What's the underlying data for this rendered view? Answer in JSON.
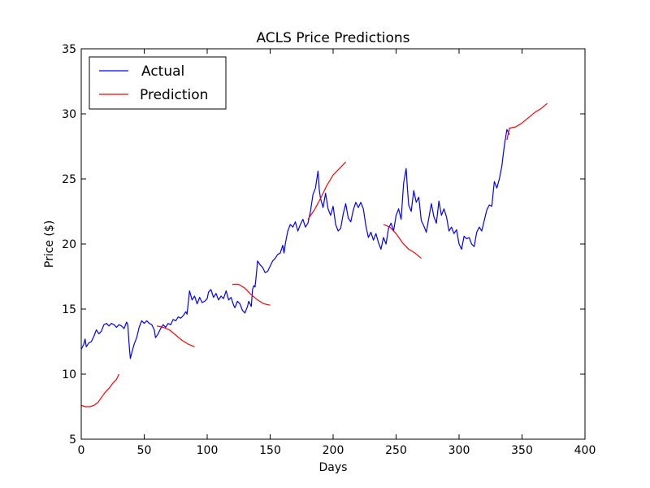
{
  "chart_data": {
    "type": "line",
    "title": "ACLS Price Predictions",
    "xlabel": "Days",
    "ylabel": "Price ($)",
    "xlim": [
      0,
      400
    ],
    "ylim": [
      5,
      35
    ],
    "xticks": [
      0,
      50,
      100,
      150,
      200,
      250,
      300,
      350,
      400
    ],
    "yticks": [
      5,
      10,
      15,
      20,
      25,
      30,
      35
    ],
    "grid": false,
    "legend": "top-left",
    "series": [
      {
        "name": "Actual",
        "color": "#0000ff",
        "points": [
          [
            0,
            11.9
          ],
          [
            2,
            12.3
          ],
          [
            3,
            12.7
          ],
          [
            4,
            12.1
          ],
          [
            6,
            12.4
          ],
          [
            8,
            12.5
          ],
          [
            10,
            12.9
          ],
          [
            12,
            13.4
          ],
          [
            14,
            13.1
          ],
          [
            16,
            13.3
          ],
          [
            18,
            13.8
          ],
          [
            20,
            13.9
          ],
          [
            22,
            13.7
          ],
          [
            24,
            13.9
          ],
          [
            26,
            13.8
          ],
          [
            28,
            13.6
          ],
          [
            30,
            13.8
          ],
          [
            32,
            13.7
          ],
          [
            34,
            13.5
          ],
          [
            36,
            14.0
          ],
          [
            37,
            13.8
          ],
          [
            38,
            12.3
          ],
          [
            39,
            11.2
          ],
          [
            40,
            11.6
          ],
          [
            42,
            12.3
          ],
          [
            44,
            12.8
          ],
          [
            46,
            13.6
          ],
          [
            48,
            14.1
          ],
          [
            50,
            13.9
          ],
          [
            52,
            14.1
          ],
          [
            54,
            13.9
          ],
          [
            56,
            13.8
          ],
          [
            58,
            13.4
          ],
          [
            59,
            12.8
          ],
          [
            61,
            13.1
          ],
          [
            63,
            13.5
          ],
          [
            65,
            13.8
          ],
          [
            67,
            13.6
          ],
          [
            69,
            13.9
          ],
          [
            71,
            13.8
          ],
          [
            73,
            14.2
          ],
          [
            75,
            14.1
          ],
          [
            77,
            14.4
          ],
          [
            79,
            14.3
          ],
          [
            81,
            14.5
          ],
          [
            83,
            14.8
          ],
          [
            84,
            14.6
          ],
          [
            86,
            16.4
          ],
          [
            88,
            15.7
          ],
          [
            90,
            16.0
          ],
          [
            92,
            15.4
          ],
          [
            94,
            15.9
          ],
          [
            96,
            15.5
          ],
          [
            98,
            15.6
          ],
          [
            100,
            15.8
          ],
          [
            101,
            16.3
          ],
          [
            103,
            16.5
          ],
          [
            105,
            15.9
          ],
          [
            107,
            16.2
          ],
          [
            109,
            15.7
          ],
          [
            111,
            16.0
          ],
          [
            113,
            15.8
          ],
          [
            115,
            16.4
          ],
          [
            117,
            15.7
          ],
          [
            119,
            15.9
          ],
          [
            121,
            15.3
          ],
          [
            122,
            15.1
          ],
          [
            124,
            15.6
          ],
          [
            126,
            15.4
          ],
          [
            128,
            14.9
          ],
          [
            130,
            14.7
          ],
          [
            132,
            15.2
          ],
          [
            133,
            15.6
          ],
          [
            135,
            15.2
          ],
          [
            136,
            16.5
          ],
          [
            137,
            16.8
          ],
          [
            138,
            16.7
          ],
          [
            139,
            17.6
          ],
          [
            140,
            18.7
          ],
          [
            142,
            18.4
          ],
          [
            144,
            18.2
          ],
          [
            146,
            17.8
          ],
          [
            148,
            17.9
          ],
          [
            150,
            18.3
          ],
          [
            152,
            18.7
          ],
          [
            154,
            18.9
          ],
          [
            156,
            19.2
          ],
          [
            158,
            19.3
          ],
          [
            160,
            19.9
          ],
          [
            161,
            19.3
          ],
          [
            162,
            20.0
          ],
          [
            164,
            21.0
          ],
          [
            166,
            21.5
          ],
          [
            168,
            21.3
          ],
          [
            170,
            21.7
          ],
          [
            172,
            21.0
          ],
          [
            174,
            21.5
          ],
          [
            176,
            21.9
          ],
          [
            178,
            21.3
          ],
          [
            180,
            21.6
          ],
          [
            182,
            22.5
          ],
          [
            184,
            23.8
          ],
          [
            186,
            24.3
          ],
          [
            188,
            25.6
          ],
          [
            189,
            24.2
          ],
          [
            190,
            23.5
          ],
          [
            192,
            22.8
          ],
          [
            194,
            23.9
          ],
          [
            196,
            22.7
          ],
          [
            198,
            22.2
          ],
          [
            200,
            22.9
          ],
          [
            202,
            21.5
          ],
          [
            204,
            21.0
          ],
          [
            206,
            21.2
          ],
          [
            208,
            22.3
          ],
          [
            210,
            23.1
          ],
          [
            212,
            22.0
          ],
          [
            214,
            21.7
          ],
          [
            216,
            22.6
          ],
          [
            218,
            23.2
          ],
          [
            220,
            22.8
          ],
          [
            222,
            23.2
          ],
          [
            224,
            22.7
          ],
          [
            226,
            21.4
          ],
          [
            228,
            20.5
          ],
          [
            230,
            20.9
          ],
          [
            232,
            20.3
          ],
          [
            234,
            20.8
          ],
          [
            236,
            20.1
          ],
          [
            238,
            19.6
          ],
          [
            240,
            20.5
          ],
          [
            242,
            20.0
          ],
          [
            244,
            21.2
          ],
          [
            246,
            21.6
          ],
          [
            248,
            21.0
          ],
          [
            250,
            22.2
          ],
          [
            252,
            22.7
          ],
          [
            254,
            21.9
          ],
          [
            256,
            24.7
          ],
          [
            258,
            25.8
          ],
          [
            259,
            24.3
          ],
          [
            260,
            23.0
          ],
          [
            262,
            22.5
          ],
          [
            264,
            24.1
          ],
          [
            266,
            23.2
          ],
          [
            268,
            23.6
          ],
          [
            270,
            21.8
          ],
          [
            272,
            21.4
          ],
          [
            274,
            20.9
          ],
          [
            276,
            22.0
          ],
          [
            278,
            23.1
          ],
          [
            280,
            22.1
          ],
          [
            282,
            21.6
          ],
          [
            284,
            23.3
          ],
          [
            286,
            22.2
          ],
          [
            288,
            22.7
          ],
          [
            290,
            22.1
          ],
          [
            292,
            21.0
          ],
          [
            294,
            21.3
          ],
          [
            296,
            20.8
          ],
          [
            298,
            21.1
          ],
          [
            300,
            20.0
          ],
          [
            302,
            19.6
          ],
          [
            304,
            20.6
          ],
          [
            306,
            20.4
          ],
          [
            308,
            20.5
          ],
          [
            310,
            20.0
          ],
          [
            312,
            19.8
          ],
          [
            314,
            20.9
          ],
          [
            316,
            21.3
          ],
          [
            318,
            21.0
          ],
          [
            320,
            21.8
          ],
          [
            322,
            22.6
          ],
          [
            324,
            23.0
          ],
          [
            326,
            22.9
          ],
          [
            328,
            24.8
          ],
          [
            330,
            24.3
          ],
          [
            332,
            25.0
          ],
          [
            334,
            26.0
          ],
          [
            336,
            27.6
          ],
          [
            338,
            28.8
          ],
          [
            340,
            28.4
          ]
        ]
      },
      {
        "name": "Prediction",
        "color": "#ff0000",
        "segments": [
          [
            [
              0,
              7.6
            ],
            [
              3,
              7.5
            ],
            [
              7,
              7.5
            ],
            [
              10,
              7.6
            ],
            [
              13,
              7.8
            ],
            [
              16,
              8.2
            ],
            [
              19,
              8.6
            ],
            [
              22,
              8.9
            ],
            [
              25,
              9.3
            ],
            [
              28,
              9.6
            ],
            [
              30,
              10.0
            ]
          ],
          [
            [
              60,
              13.7
            ],
            [
              65,
              13.6
            ],
            [
              70,
              13.4
            ],
            [
              75,
              13.0
            ],
            [
              80,
              12.6
            ],
            [
              85,
              12.3
            ],
            [
              90,
              12.1
            ]
          ],
          [
            [
              120,
              16.9
            ],
            [
              125,
              16.9
            ],
            [
              130,
              16.6
            ],
            [
              135,
              16.1
            ],
            [
              140,
              15.7
            ],
            [
              145,
              15.4
            ],
            [
              150,
              15.3
            ]
          ],
          [
            [
              180,
              21.9
            ],
            [
              185,
              22.6
            ],
            [
              190,
              23.5
            ],
            [
              195,
              24.5
            ],
            [
              200,
              25.3
            ],
            [
              205,
              25.8
            ],
            [
              210,
              26.3
            ]
          ],
          [
            [
              240,
              21.5
            ],
            [
              245,
              21.3
            ],
            [
              250,
              20.8
            ],
            [
              255,
              20.1
            ],
            [
              260,
              19.6
            ],
            [
              265,
              19.3
            ],
            [
              270,
              18.9
            ]
          ],
          [
            [
              338,
              28.0
            ],
            [
              340,
              28.9
            ],
            [
              345,
              29.0
            ],
            [
              350,
              29.3
            ],
            [
              355,
              29.7
            ],
            [
              360,
              30.1
            ],
            [
              365,
              30.4
            ],
            [
              370,
              30.8
            ]
          ]
        ]
      }
    ]
  }
}
